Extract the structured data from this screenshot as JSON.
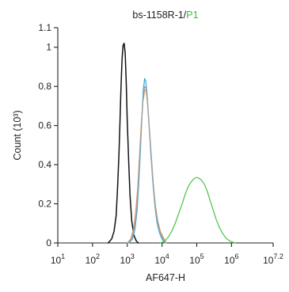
{
  "chart_data": {
    "type": "histogram-overlay",
    "title": {
      "sample": "bs-1158R-1/",
      "gate": "P1"
    },
    "xlabel": "AF647-H",
    "ylabel": "Count (10³)",
    "x_scale": "log10",
    "xlim": [
      1,
      7.2
    ],
    "ylim": [
      0,
      1.1
    ],
    "x_ticks": [
      {
        "exp": 1,
        "label_base": "10",
        "label_exp": "1"
      },
      {
        "exp": 2,
        "label_base": "10",
        "label_exp": "2"
      },
      {
        "exp": 3,
        "label_base": "10",
        "label_exp": "3"
      },
      {
        "exp": 4,
        "label_base": "10",
        "label_exp": "4"
      },
      {
        "exp": 5,
        "label_base": "10",
        "label_exp": "5"
      },
      {
        "exp": 6,
        "label_base": "10",
        "label_exp": "6"
      },
      {
        "exp": 7.2,
        "label_base": "10",
        "label_exp": "7.2"
      }
    ],
    "y_ticks": [
      {
        "value": 0,
        "label": "0"
      },
      {
        "value": 0.2,
        "label": "0.2"
      },
      {
        "value": 0.4,
        "label": "0.4"
      },
      {
        "value": 0.6,
        "label": "0.6"
      },
      {
        "value": 0.8,
        "label": "0.8"
      },
      {
        "value": 1,
        "label": "1"
      },
      {
        "value": 1.1,
        "label": "1.1"
      }
    ],
    "colors": {
      "title_gate": "#3cbf3c",
      "axis": "#222222"
    },
    "series": [
      {
        "color": "#111111",
        "points": [
          [
            2.45,
            0
          ],
          [
            2.55,
            0.02
          ],
          [
            2.62,
            0.06
          ],
          [
            2.68,
            0.14
          ],
          [
            2.72,
            0.28
          ],
          [
            2.76,
            0.45
          ],
          [
            2.79,
            0.62
          ],
          [
            2.82,
            0.8
          ],
          [
            2.85,
            0.94
          ],
          [
            2.88,
            1.01
          ],
          [
            2.91,
            1.02
          ],
          [
            2.94,
            0.97
          ],
          [
            2.97,
            0.82
          ],
          [
            3.0,
            0.62
          ],
          [
            3.04,
            0.42
          ],
          [
            3.08,
            0.24
          ],
          [
            3.13,
            0.11
          ],
          [
            3.19,
            0.04
          ],
          [
            3.26,
            0.01
          ],
          [
            3.32,
            0
          ]
        ]
      },
      {
        "color": "#3aa7d9",
        "points": [
          [
            3.05,
            0
          ],
          [
            3.15,
            0.02
          ],
          [
            3.22,
            0.07
          ],
          [
            3.28,
            0.16
          ],
          [
            3.33,
            0.3
          ],
          [
            3.38,
            0.48
          ],
          [
            3.42,
            0.64
          ],
          [
            3.46,
            0.78
          ],
          [
            3.5,
            0.84
          ],
          [
            3.53,
            0.83
          ],
          [
            3.57,
            0.76
          ],
          [
            3.62,
            0.62
          ],
          [
            3.68,
            0.45
          ],
          [
            3.74,
            0.3
          ],
          [
            3.8,
            0.18
          ],
          [
            3.86,
            0.1
          ],
          [
            3.93,
            0.05
          ],
          [
            4.0,
            0.02
          ],
          [
            4.08,
            0
          ]
        ]
      },
      {
        "color": "#e0904a",
        "points": [
          [
            3.0,
            0
          ],
          [
            3.1,
            0.02
          ],
          [
            3.18,
            0.07
          ],
          [
            3.24,
            0.15
          ],
          [
            3.3,
            0.28
          ],
          [
            3.35,
            0.44
          ],
          [
            3.4,
            0.6
          ],
          [
            3.45,
            0.72
          ],
          [
            3.5,
            0.78
          ],
          [
            3.54,
            0.78
          ],
          [
            3.58,
            0.72
          ],
          [
            3.63,
            0.6
          ],
          [
            3.69,
            0.45
          ],
          [
            3.75,
            0.3
          ],
          [
            3.81,
            0.19
          ],
          [
            3.88,
            0.11
          ],
          [
            3.95,
            0.06
          ],
          [
            4.03,
            0.03
          ],
          [
            4.12,
            0
          ]
        ]
      },
      {
        "color": "#9aa3a8",
        "points": [
          [
            3.02,
            0
          ],
          [
            3.12,
            0.02
          ],
          [
            3.2,
            0.07
          ],
          [
            3.26,
            0.15
          ],
          [
            3.31,
            0.28
          ],
          [
            3.36,
            0.45
          ],
          [
            3.41,
            0.6
          ],
          [
            3.45,
            0.73
          ],
          [
            3.5,
            0.8
          ],
          [
            3.54,
            0.79
          ],
          [
            3.58,
            0.73
          ],
          [
            3.63,
            0.6
          ],
          [
            3.69,
            0.44
          ],
          [
            3.75,
            0.29
          ],
          [
            3.81,
            0.18
          ],
          [
            3.88,
            0.1
          ],
          [
            3.95,
            0.05
          ],
          [
            4.03,
            0.02
          ],
          [
            4.1,
            0
          ]
        ]
      },
      {
        "color": "#4cc64c",
        "points": [
          [
            3.95,
            0
          ],
          [
            4.08,
            0.01
          ],
          [
            4.18,
            0.03
          ],
          [
            4.28,
            0.06
          ],
          [
            4.38,
            0.1
          ],
          [
            4.48,
            0.15
          ],
          [
            4.58,
            0.2
          ],
          [
            4.67,
            0.25
          ],
          [
            4.76,
            0.29
          ],
          [
            4.85,
            0.315
          ],
          [
            4.93,
            0.33
          ],
          [
            5.0,
            0.335
          ],
          [
            5.07,
            0.33
          ],
          [
            5.14,
            0.32
          ],
          [
            5.22,
            0.3
          ],
          [
            5.3,
            0.265
          ],
          [
            5.38,
            0.22
          ],
          [
            5.47,
            0.17
          ],
          [
            5.56,
            0.12
          ],
          [
            5.65,
            0.08
          ],
          [
            5.74,
            0.05
          ],
          [
            5.84,
            0.025
          ],
          [
            5.95,
            0.01
          ],
          [
            6.1,
            0
          ]
        ]
      }
    ]
  }
}
